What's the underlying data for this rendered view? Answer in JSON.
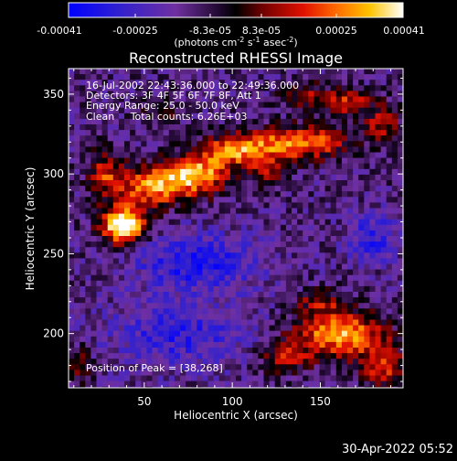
{
  "colorbar": {
    "ticks": [
      "-0.00041",
      "-0.00025",
      "-8.3e-05",
      "8.3e-05",
      "0.00025",
      "0.00041"
    ],
    "units_text": "(photons cm",
    "units_sup1": "-2",
    "units_mid": " s",
    "units_sup2": "-1",
    "units_end": " asec",
    "units_sup3": "-2",
    "units_close": ")"
  },
  "chart_data": {
    "type": "heatmap",
    "title": "Reconstructed RHESSI Image",
    "xlabel": "Heliocentric X (arcsec)",
    "ylabel": "Heliocentric Y (arcsec)",
    "xlim": [
      7,
      197
    ],
    "ylim": [
      166,
      366
    ],
    "x_ticks": [
      50,
      100,
      150
    ],
    "y_ticks": [
      200,
      250,
      300,
      350
    ],
    "colorbar_range": [
      -0.00041,
      0.00041
    ],
    "peak": [
      38,
      268
    ],
    "annotations": [
      "16-Jul-2002 22:43:36.000 to 22:49:36.000",
      "Detectors: 3F 4F 5F 6F 7F 8F, Att 1",
      "Energy Range: 25.0 - 50.0 keV",
      "Clean     Total counts: 6.26E+03"
    ],
    "peak_label": "Position of Peak = [38,268]",
    "colormap": [
      "#0000ff",
      "#4b0082",
      "#7030a0",
      "#000000",
      "#7a0000",
      "#e01000",
      "#ff7a00",
      "#ffd000",
      "#ffffff"
    ]
  },
  "footer": {
    "timestamp": "30-Apr-2022 05:52"
  }
}
